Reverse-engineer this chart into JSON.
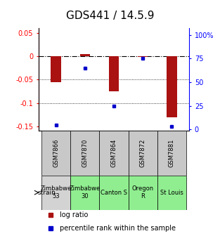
{
  "title": "GDS441 / 14.5.9",
  "samples": [
    "GSM7866",
    "GSM7870",
    "GSM7864",
    "GSM7872",
    "GSM7881"
  ],
  "log_ratios": [
    -0.055,
    0.005,
    -0.075,
    -0.001,
    -0.13
  ],
  "percentile_ranks": [
    5,
    65,
    25,
    75,
    3
  ],
  "ylim_left": [
    -0.16,
    0.06
  ],
  "ylim_right": [
    -1.5,
    107
  ],
  "yticks_left": [
    0.05,
    0.0,
    -0.05,
    -0.1,
    -0.15
  ],
  "ytick_labels_left": [
    "0.05",
    "0",
    "-0.05",
    "-0.1",
    "-0.15"
  ],
  "yticks_right": [
    100,
    75,
    50,
    25,
    0
  ],
  "ytick_labels_right": [
    "100%",
    "75",
    "50",
    "25",
    "0"
  ],
  "strain_labels": [
    "Zimbabwe\n53",
    "Zimbabwe\n30",
    "Canton S",
    "Oregon\nR",
    "St Louis"
  ],
  "strain_colors": [
    "#d3d3d3",
    "#90ee90",
    "#90ee90",
    "#90ee90",
    "#90ee90"
  ],
  "gsm_bg_color": "#c8c8c8",
  "bar_color": "#aa1111",
  "dot_color": "#0000cc",
  "title_fontsize": 11,
  "tick_fontsize": 7,
  "strain_fontsize": 6.0,
  "gsm_fontsize": 6.0,
  "legend_fontsize": 7
}
